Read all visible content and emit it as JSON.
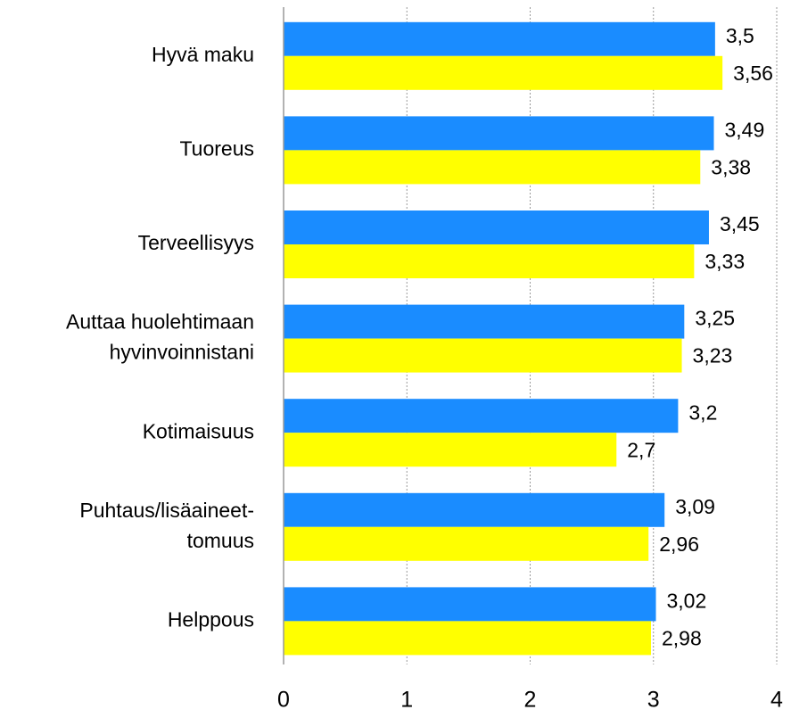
{
  "chart_data": {
    "type": "hbar",
    "categories": [
      [
        "Hyvä maku"
      ],
      [
        "Tuoreus"
      ],
      [
        "Terveellisyys"
      ],
      [
        "Auttaa huolehtimaan",
        "hyvinvoinnistani"
      ],
      [
        "Kotimaisuus"
      ],
      [
        "Puhtaus/lisäaineet-",
        "tomuus"
      ],
      [
        "Helppous"
      ]
    ],
    "series": [
      {
        "color": "#1a8cff",
        "values": [
          3.5,
          3.49,
          3.45,
          3.25,
          3.2,
          3.09,
          3.02
        ],
        "value_labels": [
          "3,5",
          "3,49",
          "3,45",
          "3,25",
          "3,2",
          "3,09",
          "3,02"
        ]
      },
      {
        "color": "#ffff00",
        "values": [
          3.56,
          3.38,
          3.33,
          3.23,
          2.7,
          2.96,
          2.98
        ],
        "value_labels": [
          "3,56",
          "3,38",
          "3,33",
          "3,23",
          "2,7",
          "2,96",
          "2,98"
        ]
      }
    ],
    "xlim": [
      0,
      4
    ],
    "xticks": [
      0,
      1,
      2,
      3,
      4
    ],
    "grid": true
  }
}
